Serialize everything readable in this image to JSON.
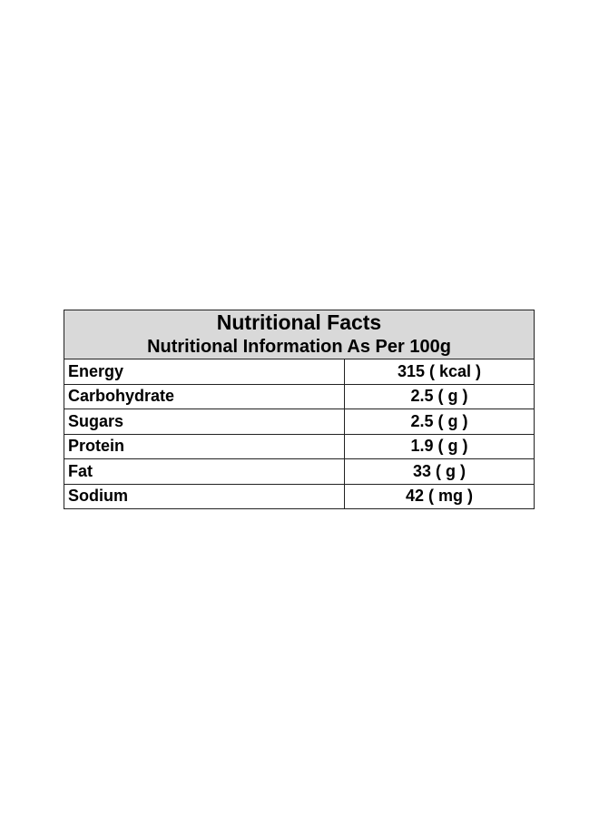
{
  "table": {
    "title": "Nutritional Facts",
    "subtitle": "Nutritional Information As Per 100g",
    "rows": [
      [
        "Energy",
        "315 ( kcal )"
      ],
      [
        "Carbohydrate",
        "2.5 ( g )"
      ],
      [
        "Sugars",
        "2.5 ( g )"
      ],
      [
        "Protein",
        "1.9 ( g )"
      ],
      [
        "Fat",
        "33 ( g )"
      ],
      [
        "Sodium",
        "42 ( mg )"
      ]
    ]
  }
}
